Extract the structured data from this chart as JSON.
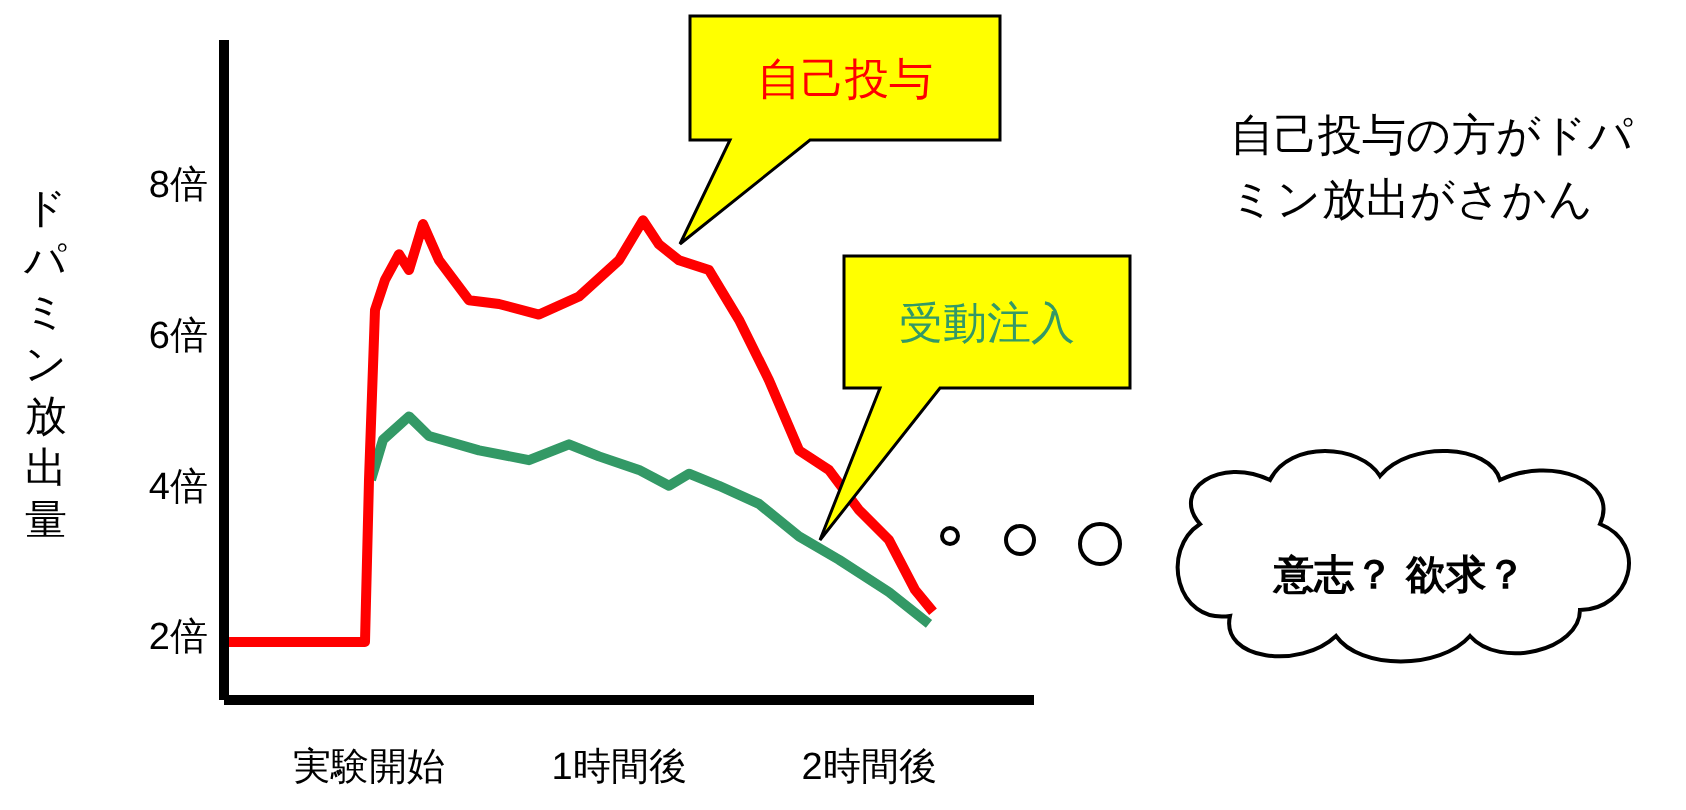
{
  "chart_data": {
    "type": "line",
    "ylabel": "ドパミン放出量",
    "xlim": [
      -0.58,
      2.66
    ],
    "xticks": [
      {
        "value": 0,
        "label": "実験開始"
      },
      {
        "value": 1,
        "label": "1時間後"
      },
      {
        "value": 2,
        "label": "2時間後"
      }
    ],
    "ylim": [
      1.15,
      9.9
    ],
    "yticks": [
      {
        "value": 2,
        "label": "2倍"
      },
      {
        "value": 4,
        "label": "4倍"
      },
      {
        "value": 6,
        "label": "6倍"
      },
      {
        "value": 8,
        "label": "8倍"
      }
    ],
    "series": [
      {
        "name": "受動注入",
        "color": "#339966",
        "x": [
          0.008,
          0.056,
          0.16,
          0.24,
          0.44,
          0.64,
          0.8,
          0.92,
          1.08,
          1.2,
          1.28,
          1.4,
          1.56,
          1.72,
          1.88,
          2.08,
          2.24
        ],
        "values": [
          4.07,
          4.6,
          4.91,
          4.65,
          4.46,
          4.33,
          4.54,
          4.38,
          4.2,
          3.99,
          4.15,
          3.99,
          3.75,
          3.32,
          3.01,
          2.58,
          2.16
        ]
      },
      {
        "name": "自己投与",
        "color": "#ff0000",
        "x": [
          -0.58,
          -0.016,
          0,
          0.024,
          0.064,
          0.12,
          0.16,
          0.216,
          0.28,
          0.4,
          0.52,
          0.68,
          0.84,
          1.0,
          1.096,
          1.16,
          1.24,
          1.36,
          1.48,
          1.6,
          1.72,
          1.84,
          1.96,
          2.08,
          2.184,
          2.256
        ],
        "values": [
          1.92,
          1.92,
          4.07,
          6.32,
          6.72,
          7.06,
          6.85,
          7.46,
          6.98,
          6.45,
          6.4,
          6.26,
          6.5,
          6.98,
          7.51,
          7.19,
          6.98,
          6.85,
          6.19,
          5.39,
          4.46,
          4.2,
          3.67,
          3.27,
          2.61,
          2.32
        ]
      }
    ],
    "annotations": [
      "自己投与の方がドパミン放出がさかん",
      "意志？ 欲求？"
    ]
  }
}
